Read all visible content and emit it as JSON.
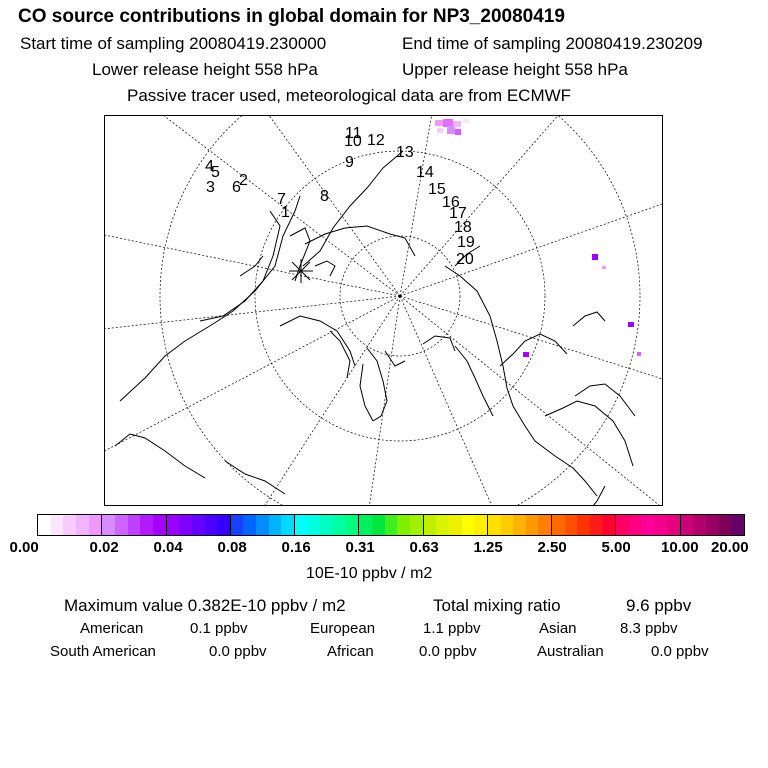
{
  "header": {
    "title": "CO  source contributions in global domain for NP3_20080419",
    "start_time": "Start time of sampling 20080419.230000",
    "end_time": "End time of sampling 20080419.230209",
    "lower_height": "Lower release height  558 hPa",
    "upper_height": "Upper release height  558 hPa",
    "tracer_note": "Passive tracer used, meteorological data are from ECMWF"
  },
  "map": {
    "projection": "north-polar-stereographic",
    "trajectory_labels": [
      "1",
      "2",
      "3",
      "4",
      "5",
      "6",
      "7",
      "8",
      "9",
      "10",
      "11",
      "12",
      "13",
      "14",
      "15",
      "16",
      "17",
      "18",
      "19",
      "20"
    ],
    "release_marker": "release-point-asterisk"
  },
  "colorbar": {
    "tick_labels": [
      "0.00",
      "0.02",
      "0.04",
      "0.08",
      "0.16",
      "0.31",
      "0.63",
      "1.25",
      "2.50",
      "5.00",
      "10.00",
      "20.00"
    ],
    "unit": "10E-10 ppbv / m2",
    "colors": [
      [
        "#ffffff",
        "#fbe6ff",
        "#f7ccff",
        "#f2b3ff",
        "#ee99ff"
      ],
      [
        "#d98cff",
        "#cc66ff",
        "#bf40ff",
        "#b31aff",
        "#a600ff"
      ],
      [
        "#9900ff",
        "#7f00ff",
        "#6600ff",
        "#4c00ff",
        "#3300ff"
      ],
      [
        "#1a40ff",
        "#0066ff",
        "#008cff",
        "#00b3ff",
        "#00d9ff"
      ],
      [
        "#00ffff",
        "#00ffe0",
        "#00ffc0",
        "#00ffa0",
        "#00ff80"
      ],
      [
        "#00f060",
        "#00e640",
        "#40ee20",
        "#80f000",
        "#a0f000"
      ],
      [
        "#c0f000",
        "#d8f400",
        "#eef000",
        "#ffff00",
        "#fff000"
      ],
      [
        "#ffe000",
        "#ffcc00",
        "#ffb300",
        "#ff9900",
        "#ff8000"
      ],
      [
        "#ff6a00",
        "#ff5000",
        "#ff3300",
        "#ff1a1a",
        "#ff0033"
      ],
      [
        "#ff0066",
        "#ff0080",
        "#ff0099",
        "#f5008c",
        "#e6007e"
      ],
      [
        "#cc0077",
        "#b3006b",
        "#990066",
        "#800059",
        "#660066"
      ]
    ]
  },
  "statistics": {
    "max_value": "Maximum value  0.382E-10 ppbv / m2",
    "total_label": "Total mixing ratio",
    "total_value": "9.6 ppbv",
    "sources": [
      {
        "name": "American",
        "value": "0.1 ppbv"
      },
      {
        "name": "European",
        "value": "1.1 ppbv"
      },
      {
        "name": "Asian",
        "value": "8.3 ppbv"
      },
      {
        "name": "South American",
        "value": "0.0 ppbv"
      },
      {
        "name": "African",
        "value": "0.0 ppbv"
      },
      {
        "name": "Australian",
        "value": "0.0 ppbv"
      }
    ]
  }
}
